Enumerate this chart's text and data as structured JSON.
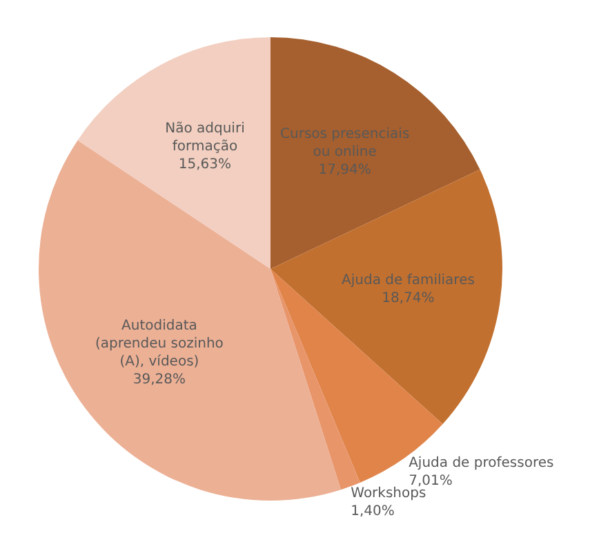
{
  "chart_data": {
    "type": "pie",
    "categories": [
      "Cursos presenciais ou online",
      "Ajuda de familiares",
      "Ajuda de professores",
      "Workshops",
      "Autodidata (aprendeu sozinho (A), vídeos)",
      "Não adquiri formação"
    ],
    "values": [
      17.94,
      18.74,
      7.01,
      1.4,
      39.28,
      15.63
    ],
    "value_labels": [
      "17,94%",
      "18,74%",
      "7,01%",
      "1,40%",
      "39,28%",
      "15,63%"
    ],
    "colors": [
      "#a65f2e",
      "#c2702f",
      "#e0844a",
      "#e8956a",
      "#ecb095",
      "#f2cfc0"
    ]
  }
}
